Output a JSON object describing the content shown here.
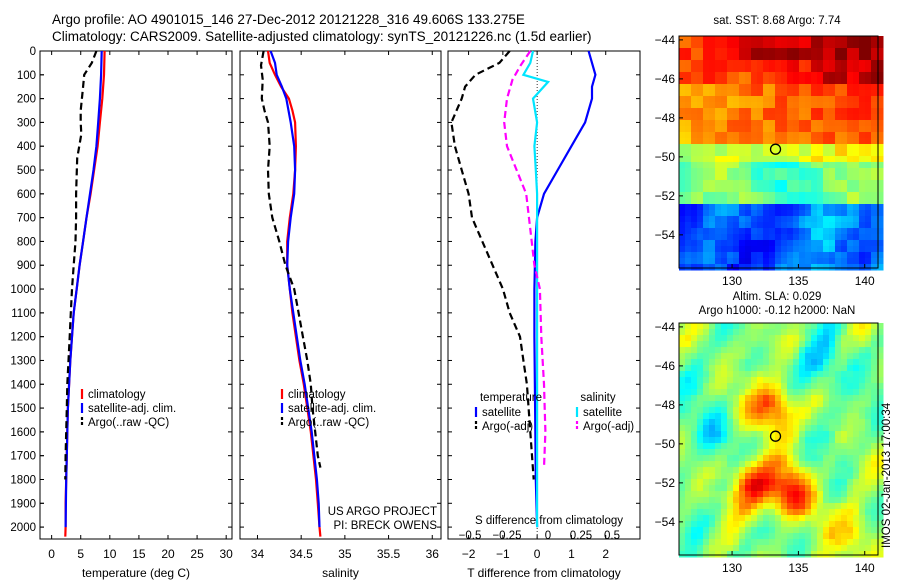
{
  "title_line1": "Argo profile: AO 4901015_146 27-Dec-2012 20121228_316 49.606S 133.275E",
  "title_line2": "Climatology: CARS2009. Satellite-adjusted climatology: synTS_20121226.nc (1.5d earlier)",
  "colors": {
    "climatology": "#ff0000",
    "satellite": "#0000ff",
    "argo": "#000000",
    "salinity_sat": "#00e5ff",
    "salinity_argo": "#ff00ff"
  },
  "chart_data": [
    {
      "type": "line",
      "id": "temperature",
      "xlabel": "temperature (deg C)",
      "ylabel": "",
      "xlim": [
        -2,
        31
      ],
      "ylim": [
        0,
        2050
      ],
      "y_inverted": true,
      "xticks": [
        0,
        5,
        10,
        15,
        20,
        25,
        30
      ],
      "yticks": [
        0,
        100,
        200,
        300,
        400,
        500,
        600,
        700,
        800,
        900,
        1000,
        1100,
        1200,
        1300,
        1400,
        1500,
        1600,
        1700,
        1800,
        1900,
        2000
      ],
      "legend": [
        "climatology",
        "satellite-adj. clim.",
        "Argo(..raw -QC)"
      ],
      "series": [
        {
          "name": "climatology",
          "style": "solid",
          "color": "#ff0000",
          "points": [
            [
              9.1,
              0
            ],
            [
              9,
              100
            ],
            [
              8.7,
              200
            ],
            [
              8.3,
              300
            ],
            [
              7.9,
              400
            ],
            [
              7.3,
              500
            ],
            [
              6.7,
              600
            ],
            [
              6,
              700
            ],
            [
              5.4,
              800
            ],
            [
              4.8,
              900
            ],
            [
              4.3,
              1000
            ],
            [
              3.8,
              1100
            ],
            [
              3.5,
              1200
            ],
            [
              3.2,
              1300
            ],
            [
              3,
              1400
            ],
            [
              2.8,
              1500
            ],
            [
              2.7,
              1600
            ],
            [
              2.6,
              1700
            ],
            [
              2.5,
              1800
            ],
            [
              2.4,
              1900
            ],
            [
              2.4,
              2000
            ],
            [
              2.35,
              2040
            ]
          ]
        },
        {
          "name": "satellite-adj. clim.",
          "style": "solid",
          "color": "#0000ff",
          "points": [
            [
              8.6,
              0
            ],
            [
              8.5,
              100
            ],
            [
              8.3,
              200
            ],
            [
              8,
              300
            ],
            [
              7.7,
              400
            ],
            [
              7.2,
              500
            ],
            [
              6.6,
              600
            ],
            [
              6,
              700
            ],
            [
              5.4,
              800
            ],
            [
              4.8,
              900
            ],
            [
              4.3,
              1000
            ],
            [
              3.8,
              1100
            ],
            [
              3.5,
              1200
            ],
            [
              3.2,
              1300
            ],
            [
              3,
              1400
            ],
            [
              2.8,
              1500
            ],
            [
              2.7,
              1600
            ],
            [
              2.6,
              1700
            ],
            [
              2.5,
              1800
            ],
            [
              2.45,
              1900
            ],
            [
              2.4,
              2000
            ]
          ]
        },
        {
          "name": "Argo(..raw -QC)",
          "style": "dashed",
          "color": "#000000",
          "points": [
            [
              7.7,
              0
            ],
            [
              6.9,
              50
            ],
            [
              5.6,
              100
            ],
            [
              5.4,
              150
            ],
            [
              5.2,
              200
            ],
            [
              5,
              250
            ],
            [
              5,
              300
            ],
            [
              5.1,
              350
            ],
            [
              4.4,
              450
            ],
            [
              4.2,
              600
            ],
            [
              4.2,
              700
            ],
            [
              4.1,
              800
            ],
            [
              3.8,
              900
            ],
            [
              3.5,
              1000
            ],
            [
              3.3,
              1100
            ],
            [
              3.1,
              1200
            ],
            [
              2.9,
              1300
            ],
            [
              2.7,
              1400
            ],
            [
              2.6,
              1500
            ],
            [
              2.5,
              1600
            ],
            [
              2.4,
              1700
            ],
            [
              2.35,
              1800
            ]
          ]
        }
      ]
    },
    {
      "type": "line",
      "id": "salinity",
      "xlabel": "salinity",
      "ylabel": "",
      "xlim": [
        33.8,
        36.1
      ],
      "ylim": [
        0,
        2050
      ],
      "y_inverted": true,
      "xticks": [
        34,
        34.5,
        35,
        35.5,
        36
      ],
      "legend": [
        "climatology",
        "satellite-adj. clim.",
        "Argo(..raw -QC)"
      ],
      "series": [
        {
          "name": "climatology",
          "style": "solid",
          "color": "#ff0000",
          "points": [
            [
              34.12,
              0
            ],
            [
              34.14,
              50
            ],
            [
              34.2,
              100
            ],
            [
              34.27,
              150
            ],
            [
              34.36,
              200
            ],
            [
              34.4,
              250
            ],
            [
              34.43,
              300
            ],
            [
              34.44,
              400
            ],
            [
              34.43,
              500
            ],
            [
              34.41,
              600
            ],
            [
              34.37,
              700
            ],
            [
              34.34,
              800
            ],
            [
              34.34,
              900
            ],
            [
              34.37,
              1000
            ],
            [
              34.4,
              1100
            ],
            [
              34.44,
              1200
            ],
            [
              34.48,
              1300
            ],
            [
              34.53,
              1400
            ],
            [
              34.57,
              1500
            ],
            [
              34.61,
              1600
            ],
            [
              34.64,
              1700
            ],
            [
              34.67,
              1800
            ],
            [
              34.69,
              1900
            ],
            [
              34.71,
              2000
            ],
            [
              34.72,
              2040
            ]
          ]
        },
        {
          "name": "satellite-adj. clim.",
          "style": "solid",
          "color": "#0000ff",
          "points": [
            [
              34.15,
              0
            ],
            [
              34.2,
              50
            ],
            [
              34.22,
              100
            ],
            [
              34.28,
              150
            ],
            [
              34.33,
              200
            ],
            [
              34.38,
              300
            ],
            [
              34.42,
              400
            ],
            [
              34.43,
              500
            ],
            [
              34.42,
              600
            ],
            [
              34.38,
              700
            ],
            [
              34.35,
              800
            ],
            [
              34.34,
              900
            ],
            [
              34.37,
              1000
            ],
            [
              34.41,
              1100
            ],
            [
              34.45,
              1200
            ],
            [
              34.49,
              1300
            ],
            [
              34.54,
              1400
            ],
            [
              34.58,
              1500
            ],
            [
              34.62,
              1600
            ],
            [
              34.65,
              1700
            ],
            [
              34.68,
              1800
            ],
            [
              34.7,
              1900
            ],
            [
              34.71,
              2000
            ]
          ]
        },
        {
          "name": "Argo(..raw -QC)",
          "style": "dashed",
          "color": "#000000",
          "points": [
            [
              34.07,
              0
            ],
            [
              34.04,
              60
            ],
            [
              34.06,
              120
            ],
            [
              34.05,
              200
            ],
            [
              34.08,
              250
            ],
            [
              34.12,
              300
            ],
            [
              34.14,
              400
            ],
            [
              34.12,
              500
            ],
            [
              34.13,
              600
            ],
            [
              34.17,
              700
            ],
            [
              34.25,
              800
            ],
            [
              34.32,
              900
            ],
            [
              34.42,
              1000
            ],
            [
              34.47,
              1100
            ],
            [
              34.52,
              1200
            ],
            [
              34.57,
              1300
            ],
            [
              34.61,
              1400
            ],
            [
              34.63,
              1500
            ],
            [
              34.66,
              1600
            ],
            [
              34.69,
              1700
            ],
            [
              34.72,
              1750
            ]
          ]
        }
      ],
      "annotation": [
        "US ARGO PROJECT",
        "PI: BRECK OWENS"
      ]
    },
    {
      "type": "line",
      "id": "difference",
      "xlabel": "T difference from climatology",
      "top_axis_label": "S difference from climatology",
      "xlim": [
        -2.6,
        3
      ],
      "ylim": [
        0,
        2050
      ],
      "y_inverted": true,
      "xticks": [
        -2,
        -1,
        0,
        1,
        2
      ],
      "s_ticks": [
        -0.5,
        -0.25,
        0,
        0.25,
        0.5
      ],
      "legend": {
        "temperature_title": "temperature",
        "salinity_title": "salinity",
        "entries": [
          "satellite",
          "Argo(-adj)",
          "satellite",
          "Argo(-adj)"
        ]
      },
      "series": [
        {
          "name": "T satellite",
          "style": "solid",
          "color": "#0000ff",
          "points": [
            [
              1.5,
              0
            ],
            [
              1.6,
              50
            ],
            [
              1.7,
              100
            ],
            [
              1.6,
              150
            ],
            [
              1.6,
              200
            ],
            [
              1.4,
              300
            ],
            [
              1,
              400
            ],
            [
              0.6,
              500
            ],
            [
              0.2,
              600
            ],
            [
              0,
              700
            ],
            [
              -0.05,
              800
            ],
            [
              -0.08,
              1000
            ],
            [
              -0.08,
              1200
            ],
            [
              -0.06,
              1500
            ],
            [
              -0.04,
              1800
            ],
            [
              0,
              2000
            ]
          ]
        },
        {
          "name": "T Argo(-adj)",
          "style": "dashed",
          "color": "#000000",
          "points": [
            [
              -0.8,
              0
            ],
            [
              -1.1,
              50
            ],
            [
              -1.8,
              100
            ],
            [
              -2.1,
              150
            ],
            [
              -2.2,
              200
            ],
            [
              -2.5,
              300
            ],
            [
              -2.4,
              400
            ],
            [
              -2.2,
              500
            ],
            [
              -2,
              600
            ],
            [
              -1.9,
              700
            ],
            [
              -1.6,
              800
            ],
            [
              -1.3,
              900
            ],
            [
              -1,
              1000
            ],
            [
              -0.8,
              1100
            ],
            [
              -0.5,
              1200
            ],
            [
              -0.4,
              1300
            ],
            [
              -0.3,
              1400
            ],
            [
              -0.25,
              1500
            ],
            [
              -0.2,
              1600
            ],
            [
              -0.15,
              1700
            ],
            [
              -0.1,
              1800
            ]
          ]
        },
        {
          "name": "S satellite",
          "style": "solid",
          "color": "#00e5ff",
          "points": [
            [
              -0.03,
              0
            ],
            [
              -0.05,
              50
            ],
            [
              -0.1,
              100
            ],
            [
              0.08,
              130
            ],
            [
              -0.03,
              200
            ],
            [
              0,
              300
            ],
            [
              -0.02,
              400
            ],
            [
              -0.01,
              500
            ],
            [
              0,
              600
            ],
            [
              0,
              800
            ],
            [
              0,
              1000
            ],
            [
              0,
              1500
            ],
            [
              0,
              2000
            ]
          ]
        },
        {
          "name": "S Argo(-adj)",
          "style": "dashed",
          "color": "#ff00ff",
          "points": [
            [
              -0.05,
              0
            ],
            [
              -0.12,
              60
            ],
            [
              -0.18,
              120
            ],
            [
              -0.22,
              200
            ],
            [
              -0.24,
              300
            ],
            [
              -0.22,
              400
            ],
            [
              -0.15,
              500
            ],
            [
              -0.08,
              600
            ],
            [
              -0.04,
              800
            ],
            [
              -0.02,
              900
            ],
            [
              0.02,
              1000
            ],
            [
              0.03,
              1200
            ],
            [
              0.05,
              1400
            ],
            [
              0.06,
              1600
            ],
            [
              0.05,
              1750
            ]
          ]
        }
      ]
    },
    {
      "type": "heatmap",
      "id": "sst_map",
      "title": "sat. SST: 8.68  Argo: 7.74",
      "xlim": [
        126,
        141
      ],
      "ylim": [
        -55.7,
        -43.8
      ],
      "xticks": [
        130,
        135,
        140
      ],
      "yticks": [
        -44,
        -46,
        -48,
        -50,
        -52,
        -54
      ],
      "marker": {
        "lon": 133.275,
        "lat": -49.606
      }
    },
    {
      "type": "heatmap",
      "id": "sla_map",
      "title": "Altim. SLA: 0.029",
      "subtitle": "Argo h1000: -0.12  h2000: NaN",
      "xlim": [
        126,
        141
      ],
      "ylim": [
        -55.7,
        -43.8
      ],
      "xticks": [
        130,
        135,
        140
      ],
      "yticks": [
        -44,
        -46,
        -48,
        -50,
        -52,
        -54
      ],
      "marker": {
        "lon": 133.275,
        "lat": -49.606
      },
      "side_label": "IMOS 02-Jan-2013 17:00:34"
    }
  ]
}
